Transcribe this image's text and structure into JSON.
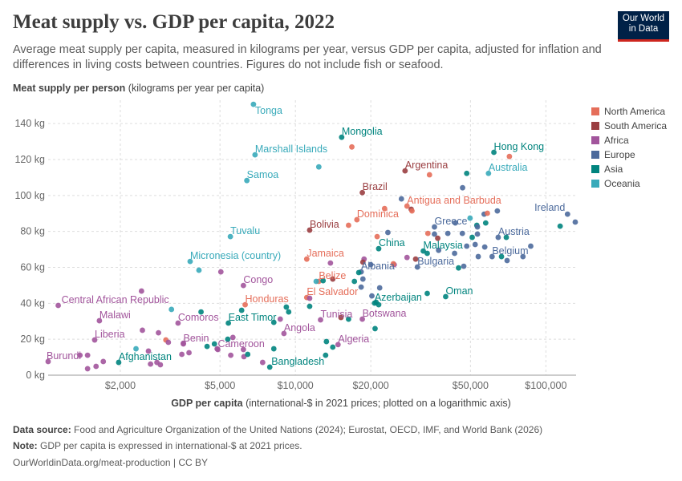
{
  "title": "Meat supply vs. GDP per capita, 2022",
  "subtitle": "Average meat supply per capita, measured in kilograms per year, versus GDP per capita, adjusted for inflation and differences in living costs between countries. Figures do not include fish or seafood.",
  "logo": {
    "line1": "Our World",
    "line2": "in Data"
  },
  "footer": {
    "source_label": "Data source:",
    "source": "Food and Agriculture Organization of the United Nations (2024); Eurostat, OECD, IMF, and World Bank (2026)",
    "note_label": "Note:",
    "note": "GDP per capita is expressed in international-$ at 2021 prices.",
    "url": "OurWorldinData.org/meat-production | CC BY"
  },
  "chart_data": {
    "type": "scatter",
    "title": "Meat supply vs. GDP per capita, 2022",
    "ylabel_bold": "Meat supply per person",
    "ylabel_rest": "(kilograms per year per capita)",
    "xlabel_bold": "GDP per capita",
    "xlabel_rest": "(international-$ in 2021 prices; plotted on a logarithmic axis)",
    "x_scale": "log",
    "xlim": [
      1030,
      132000
    ],
    "ylim": [
      0,
      153
    ],
    "grid": true,
    "legend_placement": "right",
    "x_ticks": [
      {
        "v": 2000,
        "label": "$2,000"
      },
      {
        "v": 5000,
        "label": "$5,000"
      },
      {
        "v": 10000,
        "label": "$10,000"
      },
      {
        "v": 20000,
        "label": "$20,000"
      },
      {
        "v": 50000,
        "label": "$50,000"
      },
      {
        "v": 100000,
        "label": "$100,000"
      }
    ],
    "y_ticks": [
      {
        "v": 0,
        "label": "0 kg"
      },
      {
        "v": 20,
        "label": "20 kg"
      },
      {
        "v": 40,
        "label": "40 kg"
      },
      {
        "v": 60,
        "label": "60 kg"
      },
      {
        "v": 80,
        "label": "80 kg"
      },
      {
        "v": 100,
        "label": "100 kg"
      },
      {
        "v": 120,
        "label": "120 kg"
      },
      {
        "v": 140,
        "label": "140 kg"
      }
    ],
    "regions": [
      {
        "name": "North America",
        "color": "#E56E5A"
      },
      {
        "name": "South America",
        "color": "#9A3E41"
      },
      {
        "name": "Africa",
        "color": "#A2559C"
      },
      {
        "name": "Europe",
        "color": "#4C6A9C"
      },
      {
        "name": "Asia",
        "color": "#00847E"
      },
      {
        "name": "Oceania",
        "color": "#38AABA"
      }
    ],
    "points": [
      [
        "Tonga",
        "Oceania",
        6800,
        150.7
      ],
      [
        "Mongolia",
        "Asia",
        15300,
        132.4
      ],
      [
        "Marshall Islands",
        "Oceania",
        6900,
        122.6
      ],
      [
        "Samoa",
        "Oceania",
        6400,
        108.3
      ],
      [
        "Argentina",
        "South America",
        27400,
        113.7
      ],
      [
        "Hong Kong",
        "Asia",
        62000,
        124
      ],
      [
        "Australia",
        "Oceania",
        59000,
        112.3
      ],
      [
        "Brazil",
        "South America",
        18500,
        101.6
      ],
      [
        "Antigua and Barbuda",
        "North America",
        27900,
        94.1
      ],
      [
        "Dominica",
        "North America",
        17600,
        86.5
      ],
      [
        "Bolivia",
        "South America",
        11400,
        80.7
      ],
      [
        "Ireland",
        "Europe",
        122000,
        89.6
      ],
      [
        "Tuvalu",
        "Oceania",
        5500,
        77.1
      ],
      [
        "Greece",
        "Europe",
        35900,
        82.5
      ],
      [
        "Austria",
        "Europe",
        64500,
        76.7
      ],
      [
        "China",
        "Asia",
        21500,
        70.4
      ],
      [
        "Malaysia",
        "Asia",
        32400,
        69.1
      ],
      [
        "Micronesia (country)",
        "Oceania",
        3800,
        63.3
      ],
      [
        "Jamaica",
        "North America",
        11100,
        64.6
      ],
      [
        "Bulgaria",
        "Europe",
        30700,
        60.2
      ],
      [
        "Belgium",
        "Europe",
        61000,
        66
      ],
      [
        "Albania",
        "Europe",
        18300,
        57.5
      ],
      [
        "Belize",
        "North America",
        12400,
        52.2
      ],
      [
        "Congo",
        "Africa",
        6200,
        49.9
      ],
      [
        "Central African Republic",
        "Africa",
        1130,
        38.8
      ],
      [
        "El Salvador",
        "North America",
        11100,
        43.2
      ],
      [
        "Honduras",
        "North America",
        6300,
        39.2
      ],
      [
        "Azerbaijan",
        "Asia",
        20700,
        40.1
      ],
      [
        "Oman",
        "Asia",
        39800,
        43.7
      ],
      [
        "Malawi",
        "Africa",
        1650,
        30.3
      ],
      [
        "Comoros",
        "Africa",
        3400,
        29
      ],
      [
        "East Timor",
        "Asia",
        5400,
        29
      ],
      [
        "Tunisia",
        "Africa",
        12600,
        30.8
      ],
      [
        "Botswana",
        "Africa",
        18500,
        31.2
      ],
      [
        "Angola",
        "Africa",
        9000,
        23.2
      ],
      [
        "Liberia",
        "Africa",
        1580,
        19.6
      ],
      [
        "Benin",
        "Africa",
        3570,
        17.4
      ],
      [
        "Cameroon",
        "Africa",
        4900,
        14.3
      ],
      [
        "Algeria",
        "Africa",
        14800,
        17
      ],
      [
        "Afghanistan",
        "Asia",
        1970,
        7.1
      ],
      [
        "Burundi",
        "Africa",
        1030,
        7.6
      ],
      [
        "Bangladesh",
        "Asia",
        7900,
        4.5
      ],
      [
        "",
        "Oceania",
        12400,
        115.9
      ],
      [
        "",
        "Oceania",
        4120,
        58.4
      ],
      [
        "",
        "Africa",
        5040,
        57.5
      ],
      [
        "",
        "Africa",
        2430,
        46.8
      ],
      [
        "",
        "Oceania",
        3200,
        36.6
      ],
      [
        "",
        "Asia",
        4200,
        35.2
      ],
      [
        "",
        "Asia",
        6100,
        36.1
      ],
      [
        "",
        "Africa",
        8700,
        31.2
      ],
      [
        "",
        "Asia",
        9200,
        37.9
      ],
      [
        "",
        "Asia",
        9400,
        35.2
      ],
      [
        "",
        "Asia",
        11400,
        38.3
      ],
      [
        "",
        "Africa",
        11400,
        42.8
      ],
      [
        "",
        "Asia",
        8200,
        29.4
      ],
      [
        "",
        "Africa",
        2450,
        25
      ],
      [
        "",
        "Africa",
        2840,
        23.6
      ],
      [
        "",
        "North America",
        3040,
        19.6
      ],
      [
        "",
        "Africa",
        3110,
        18.3
      ],
      [
        "",
        "Africa",
        3570,
        17.8
      ],
      [
        "",
        "Asia",
        4440,
        16
      ],
      [
        "",
        "Asia",
        4750,
        17.4
      ],
      [
        "",
        "Africa",
        4870,
        14.7
      ],
      [
        "",
        "Africa",
        5630,
        21
      ],
      [
        "",
        "Asia",
        5370,
        20
      ],
      [
        "",
        "Africa",
        6200,
        14.3
      ],
      [
        "",
        "Asia",
        8200,
        14.7
      ],
      [
        "",
        "Oceania",
        2310,
        14.7
      ],
      [
        "",
        "Africa",
        2590,
        13.4
      ],
      [
        "",
        "Africa",
        3520,
        11.6
      ],
      [
        "",
        "Africa",
        3760,
        12.5
      ],
      [
        "",
        "Africa",
        5520,
        11.1
      ],
      [
        "",
        "Africa",
        6230,
        10.3
      ],
      [
        "",
        "Asia",
        6450,
        11.6
      ],
      [
        "",
        "Africa",
        1380,
        11.1
      ],
      [
        "",
        "Africa",
        1480,
        11.1
      ],
      [
        "",
        "Africa",
        1710,
        7.6
      ],
      [
        "",
        "Africa",
        1600,
        4.9
      ],
      [
        "",
        "Africa",
        1480,
        3.6
      ],
      [
        "",
        "Africa",
        2640,
        6.2
      ],
      [
        "",
        "Africa",
        2800,
        7.1
      ],
      [
        "",
        "Africa",
        2890,
        5.8
      ],
      [
        "",
        "Africa",
        7400,
        7.1
      ],
      [
        "",
        "Asia",
        13200,
        11.1
      ],
      [
        "",
        "Africa",
        13800,
        62.4
      ],
      [
        "",
        "Oceania",
        12100,
        52.2
      ],
      [
        "",
        "Asia",
        12900,
        52.6
      ],
      [
        "",
        "South America",
        14100,
        53.5
      ],
      [
        "",
        "Asia",
        13300,
        18.7
      ],
      [
        "",
        "Asia",
        14100,
        15.6
      ],
      [
        "",
        "North America",
        16800,
        127
      ],
      [
        "",
        "North America",
        34300,
        111.5
      ],
      [
        "",
        "Asia",
        48300,
        112.3
      ],
      [
        "",
        "North America",
        71500,
        121.7
      ],
      [
        "",
        "Europe",
        46500,
        104.3
      ],
      [
        "",
        "Europe",
        26500,
        98.1
      ],
      [
        "",
        "South America",
        29000,
        92.3
      ],
      [
        "",
        "North America",
        29200,
        91.4
      ],
      [
        "",
        "North America",
        22700,
        92.7
      ],
      [
        "",
        "North America",
        16300,
        83.4
      ],
      [
        "",
        "North America",
        21200,
        77.1
      ],
      [
        "",
        "Europe",
        23400,
        79.4
      ],
      [
        "",
        "North America",
        33800,
        78.9
      ],
      [
        "",
        "Europe",
        35900,
        78.5
      ],
      [
        "",
        "South America",
        37000,
        76.2
      ],
      [
        "",
        "Europe",
        40600,
        78.9
      ],
      [
        "",
        "Europe",
        43500,
        84.7
      ],
      [
        "",
        "Europe",
        46400,
        78.9
      ],
      [
        "",
        "Oceania",
        49800,
        87.4
      ],
      [
        "",
        "Asia",
        53000,
        83.4
      ],
      [
        "",
        "Europe",
        53300,
        82.5
      ],
      [
        "",
        "Europe",
        56700,
        89.6
      ],
      [
        "",
        "North America",
        58400,
        90.1
      ],
      [
        "",
        "Asia",
        57500,
        84.7
      ],
      [
        "",
        "Europe",
        64000,
        91.4
      ],
      [
        "",
        "Europe",
        53300,
        78.5
      ],
      [
        "",
        "Asia",
        50800,
        76.7
      ],
      [
        "",
        "Asia",
        69500,
        76.7
      ],
      [
        "",
        "Europe",
        131000,
        85.2
      ],
      [
        "",
        "Asia",
        114000,
        82.9
      ],
      [
        "",
        "Europe",
        87000,
        71.8
      ],
      [
        "",
        "Europe",
        81000,
        66
      ],
      [
        "",
        "Europe",
        70000,
        63.8
      ],
      [
        "",
        "Asia",
        66500,
        66
      ],
      [
        "",
        "Europe",
        53700,
        66
      ],
      [
        "",
        "Europe",
        57000,
        71.3
      ],
      [
        "",
        "Europe",
        52200,
        72.7
      ],
      [
        "",
        "Europe",
        48300,
        71.8
      ],
      [
        "",
        "Europe",
        43200,
        67.8
      ],
      [
        "",
        "Europe",
        37300,
        69.5
      ],
      [
        "",
        "Asia",
        33600,
        67.8
      ],
      [
        "",
        "Africa",
        27900,
        65.5
      ],
      [
        "",
        "South America",
        30200,
        64.6
      ],
      [
        "",
        "Asia",
        44800,
        59.7
      ],
      [
        "",
        "Europe",
        47000,
        60.6
      ],
      [
        "",
        "Africa",
        24800,
        61.5
      ],
      [
        "",
        "North America",
        24600,
        62
      ],
      [
        "",
        "Europe",
        20000,
        61.5
      ],
      [
        "",
        "Africa",
        18800,
        64.6
      ],
      [
        "",
        "South America",
        18600,
        62.9
      ],
      [
        "",
        "Asia",
        17900,
        57.1
      ],
      [
        "",
        "Europe",
        18600,
        53.5
      ],
      [
        "",
        "Asia",
        17200,
        52.2
      ],
      [
        "",
        "Europe",
        18300,
        49
      ],
      [
        "",
        "Europe",
        21700,
        48.6
      ],
      [
        "",
        "Europe",
        20200,
        44.1
      ],
      [
        "",
        "Asia",
        21000,
        40.6
      ],
      [
        "",
        "Asia",
        21500,
        39.2
      ],
      [
        "",
        "Asia",
        33600,
        45.5
      ],
      [
        "",
        "Asia",
        20800,
        25.9
      ],
      [
        "",
        "Asia",
        16300,
        31.2
      ],
      [
        "",
        "South America",
        15200,
        32.1
      ]
    ]
  }
}
